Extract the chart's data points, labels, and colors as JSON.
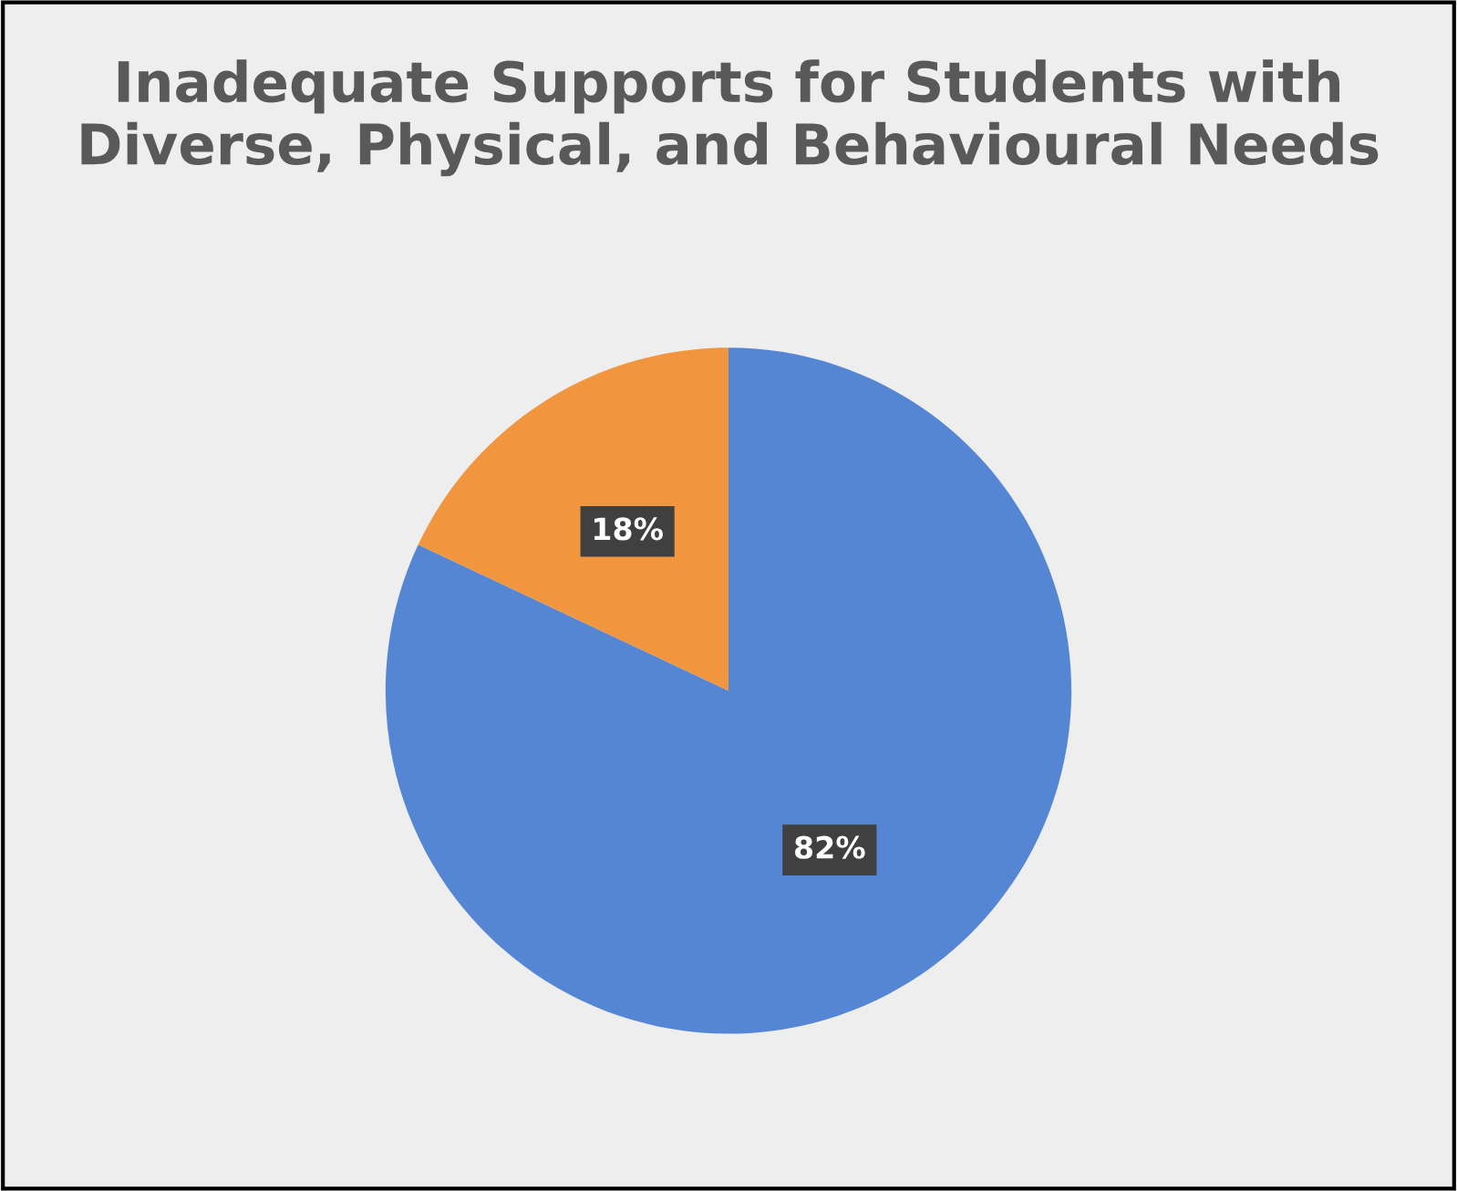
{
  "chart_data": {
    "type": "pie",
    "title": "Inadequate Supports for Students with Diverse, Physical, and Behavioural Needs",
    "categories": [
      null,
      null
    ],
    "values": [
      82,
      18
    ],
    "colors": [
      "#5586d3",
      "#f2953f"
    ],
    "value_labels": [
      "82%",
      "18%"
    ]
  }
}
